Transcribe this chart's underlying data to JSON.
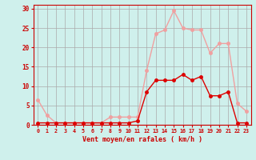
{
  "hours": [
    0,
    1,
    2,
    3,
    4,
    5,
    6,
    7,
    8,
    9,
    10,
    11,
    12,
    13,
    14,
    15,
    16,
    17,
    18,
    19,
    20,
    21,
    22,
    23
  ],
  "rafales": [
    6.5,
    2.5,
    0.5,
    0.5,
    0.5,
    0.5,
    0.5,
    0.5,
    2.0,
    2.0,
    2.0,
    2.0,
    14.0,
    23.5,
    24.5,
    29.5,
    25.0,
    24.5,
    24.5,
    18.5,
    21.0,
    21.0,
    5.5,
    3.5
  ],
  "moyen": [
    0.5,
    0.5,
    0.5,
    0.5,
    0.5,
    0.5,
    0.5,
    0.5,
    0.5,
    0.5,
    0.5,
    1.0,
    8.5,
    11.5,
    11.5,
    11.5,
    13.0,
    11.5,
    12.5,
    7.5,
    7.5,
    8.5,
    0.5,
    0.5
  ],
  "color_rafales": "#f0a0a0",
  "color_moyen": "#dd0000",
  "bg_color": "#cff0ec",
  "grid_color": "#aaaaaa",
  "axis_color": "#cc0000",
  "tick_color": "#cc0000",
  "ylabel_ticks": [
    0,
    5,
    10,
    15,
    20,
    25,
    30
  ],
  "ylim": [
    0,
    31
  ],
  "xlim": [
    -0.5,
    23.5
  ],
  "xlabel": "Vent moyen/en rafales ( km/h )",
  "marker_size": 2.5,
  "line_width": 1.0
}
